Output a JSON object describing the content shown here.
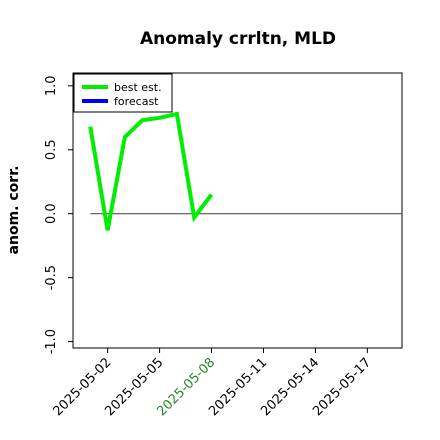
{
  "chart_data": {
    "type": "line",
    "title": "Anomaly crrltn, MLD",
    "xlabel": "",
    "ylabel": "anom. corr.",
    "ylim": [
      -1.05,
      1.1
    ],
    "xlim": [
      "2025-04-30",
      "2025-05-19"
    ],
    "yticks": [
      "-1.0",
      "-0.5",
      "0.0",
      "0.5",
      "1.0"
    ],
    "xticks": [
      "2025-05-02",
      "2025-05-05",
      "2025-05-08",
      "2025-05-11",
      "2025-05-14",
      "2025-05-17"
    ],
    "highlight_xtick": "2025-05-08",
    "highlight_color": "#228b22",
    "grid": false,
    "legend_position": "top-left",
    "reference_line": {
      "y": 0.0,
      "x_start": "2025-05-01",
      "x_end": "2025-05-19",
      "color": "#555555"
    },
    "series": [
      {
        "name": "best est.",
        "color": "#00ee00",
        "x": [
          "2025-05-01",
          "2025-05-02",
          "2025-05-03",
          "2025-05-04",
          "2025-05-05",
          "2025-05-06",
          "2025-05-07",
          "2025-05-08"
        ],
        "y": [
          0.68,
          -0.13,
          0.6,
          0.73,
          0.75,
          0.78,
          -0.03,
          0.15
        ]
      },
      {
        "name": "forecast",
        "color": "#0000ff",
        "x": [],
        "y": []
      }
    ]
  }
}
